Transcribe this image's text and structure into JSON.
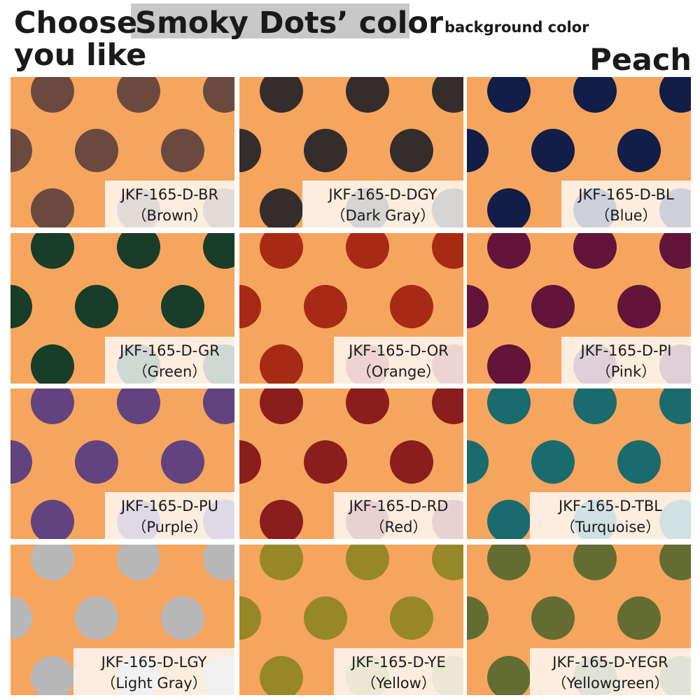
{
  "header": {
    "title_start": "Choose",
    "title_highlight": "Smoky Dots’ color",
    "title_end": "you like",
    "background_label": "background color",
    "background_name": "Peach",
    "background_color": "#f6a55e"
  },
  "swatches": [
    {
      "code": "JKF-165-D-BR",
      "name": "（Brown）",
      "color": "#6a4a3e"
    },
    {
      "code": "JKF-165-D-DGY",
      "name": "（Dark Gray）",
      "color": "#342d2c"
    },
    {
      "code": "JKF-165-D-BL",
      "name": "（Blue）",
      "color": "#121d48"
    },
    {
      "code": "JKF-165-D-GR",
      "name": "（Green）",
      "color": "#183d29"
    },
    {
      "code": "JKF-165-D-OR",
      "name": "（Orange）",
      "color": "#a72a14"
    },
    {
      "code": "JKF-165-D-PI",
      "name": "（Pink）",
      "color": "#621439"
    },
    {
      "code": "JKF-165-D-PU",
      "name": "（Purple）",
      "color": "#624380"
    },
    {
      "code": "JKF-165-D-RD",
      "name": "（Red）",
      "color": "#8a1e1d"
    },
    {
      "code": "JKF-165-D-TBL",
      "name": "（Turquoise）",
      "color": "#196b6d"
    },
    {
      "code": "JKF-165-D-LGY",
      "name": "（Light Gray）",
      "color": "#b9b8b9"
    },
    {
      "code": "JKF-165-D-YE",
      "name": "（Yellow）",
      "color": "#968827"
    },
    {
      "code": "JKF-165-D-YEGR",
      "name": "（Yellowgreen）",
      "color": "#636d31"
    }
  ]
}
